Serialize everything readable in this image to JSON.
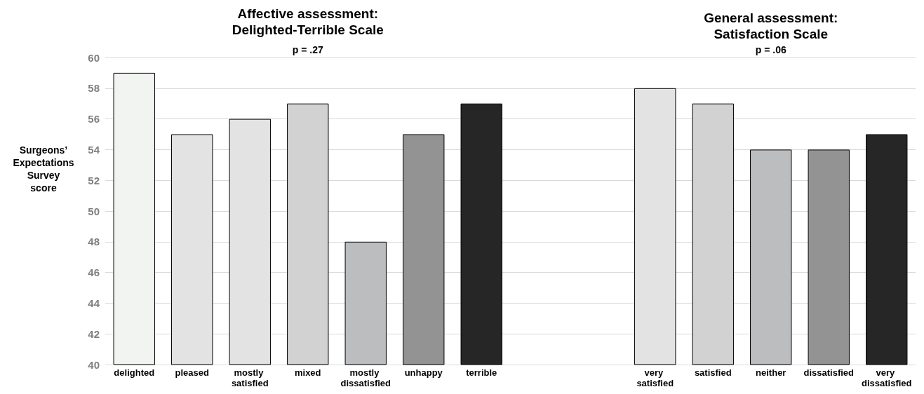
{
  "chart_data": {
    "type": "bar",
    "categories": [
      "delighted",
      "pleased",
      "mostly satisfied",
      "mixed",
      "mostly dissatisfied",
      "unhappy",
      "terrible",
      null,
      null,
      "very satisfied",
      "satisfied",
      "neither",
      "dissatisfied",
      "very dissatisfied"
    ],
    "values": [
      59,
      55,
      56,
      57,
      48,
      55,
      57,
      40,
      40,
      58,
      57,
      54,
      54,
      55
    ],
    "colors": [
      "#f2f4f2",
      "#e3e3e3",
      "#e3e3e3",
      "#d1d2d1",
      "#bcbdbf",
      "#939393",
      "#262626",
      "#ffffff",
      "#ffffff",
      "#e3e3e3",
      "#d1d2d1",
      "#bcbdbf",
      "#939393",
      "#262626"
    ],
    "ylabel": "Surgeons’\nExpectations\nSurvey\nscore",
    "ylim": [
      40,
      60
    ],
    "yticks": [
      40,
      42,
      44,
      46,
      48,
      50,
      52,
      54,
      56,
      58,
      60
    ],
    "grid": "y",
    "annotations": [
      "Affective assessment:\nDelighted-Terrible Scale",
      "General assessment:\nSatisfaction Scale",
      "p = .27",
      "p = .06"
    ]
  }
}
